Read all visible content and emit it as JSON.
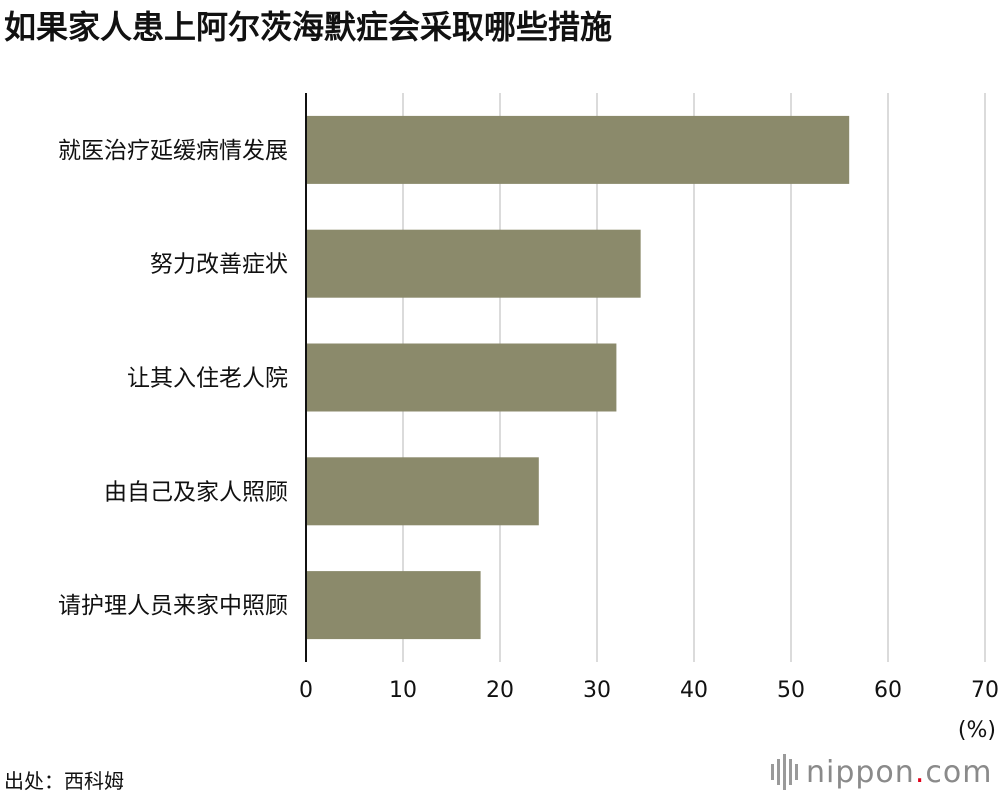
{
  "chart_data": {
    "type": "bar",
    "orientation": "horizontal",
    "title": "如果家人患上阿尔茨海默症会采取哪些措施",
    "categories": [
      "就医治疗延缓病情发展",
      "努力改善症状",
      "让其入住老人院",
      "由自己及家人照顾",
      "请护理人员来家中照顾"
    ],
    "values": [
      56,
      34.5,
      32,
      24,
      18
    ],
    "xlim": [
      0,
      70
    ],
    "xticks": [
      "0",
      "10",
      "20",
      "30",
      "40",
      "50",
      "60",
      "70"
    ],
    "unit": "(%)",
    "grid": true,
    "bar_color": "#8b8a6b",
    "source": "出处：西科姆"
  },
  "brand": {
    "icon": "sound-wave-icon",
    "name": "nippon",
    "dot": ".",
    "tld": "com"
  }
}
